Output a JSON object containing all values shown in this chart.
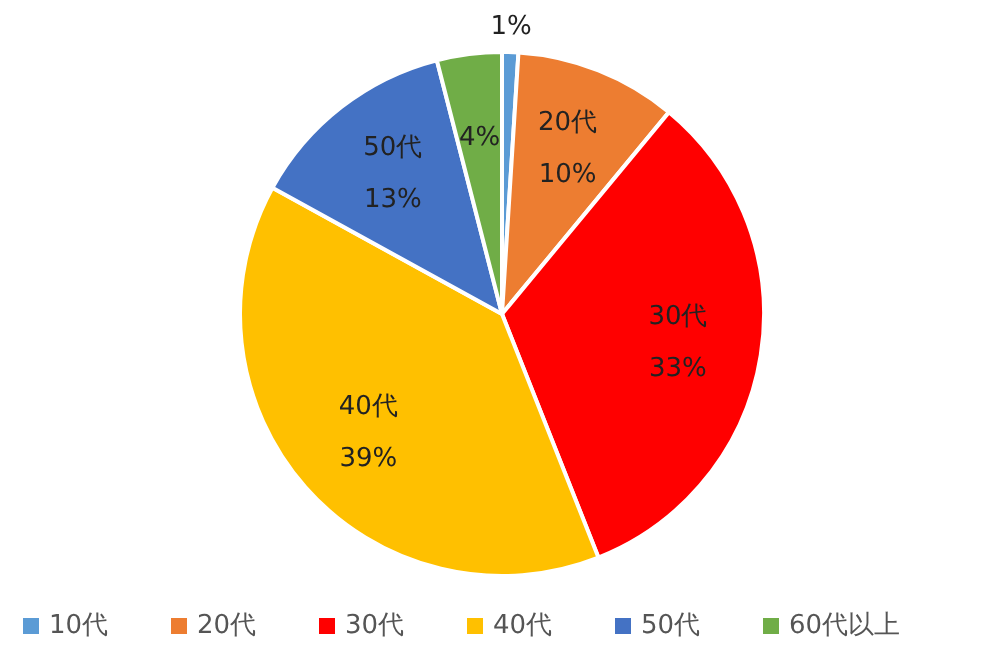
{
  "chart_data": {
    "type": "pie",
    "categories": [
      "10代",
      "20代",
      "30代",
      "40代",
      "50代",
      "60代以上"
    ],
    "values": [
      1,
      10,
      33,
      39,
      13,
      4
    ],
    "colors": [
      "#5b9bd5",
      "#ed7d31",
      "#ff0000",
      "#ffc000",
      "#4472c4",
      "#70ad47"
    ],
    "value_labels": [
      "1%",
      "20代\n10%",
      "30代\n33%",
      "40代\n39%",
      "50代\n13%",
      "4%"
    ],
    "legend": "bottom"
  }
}
